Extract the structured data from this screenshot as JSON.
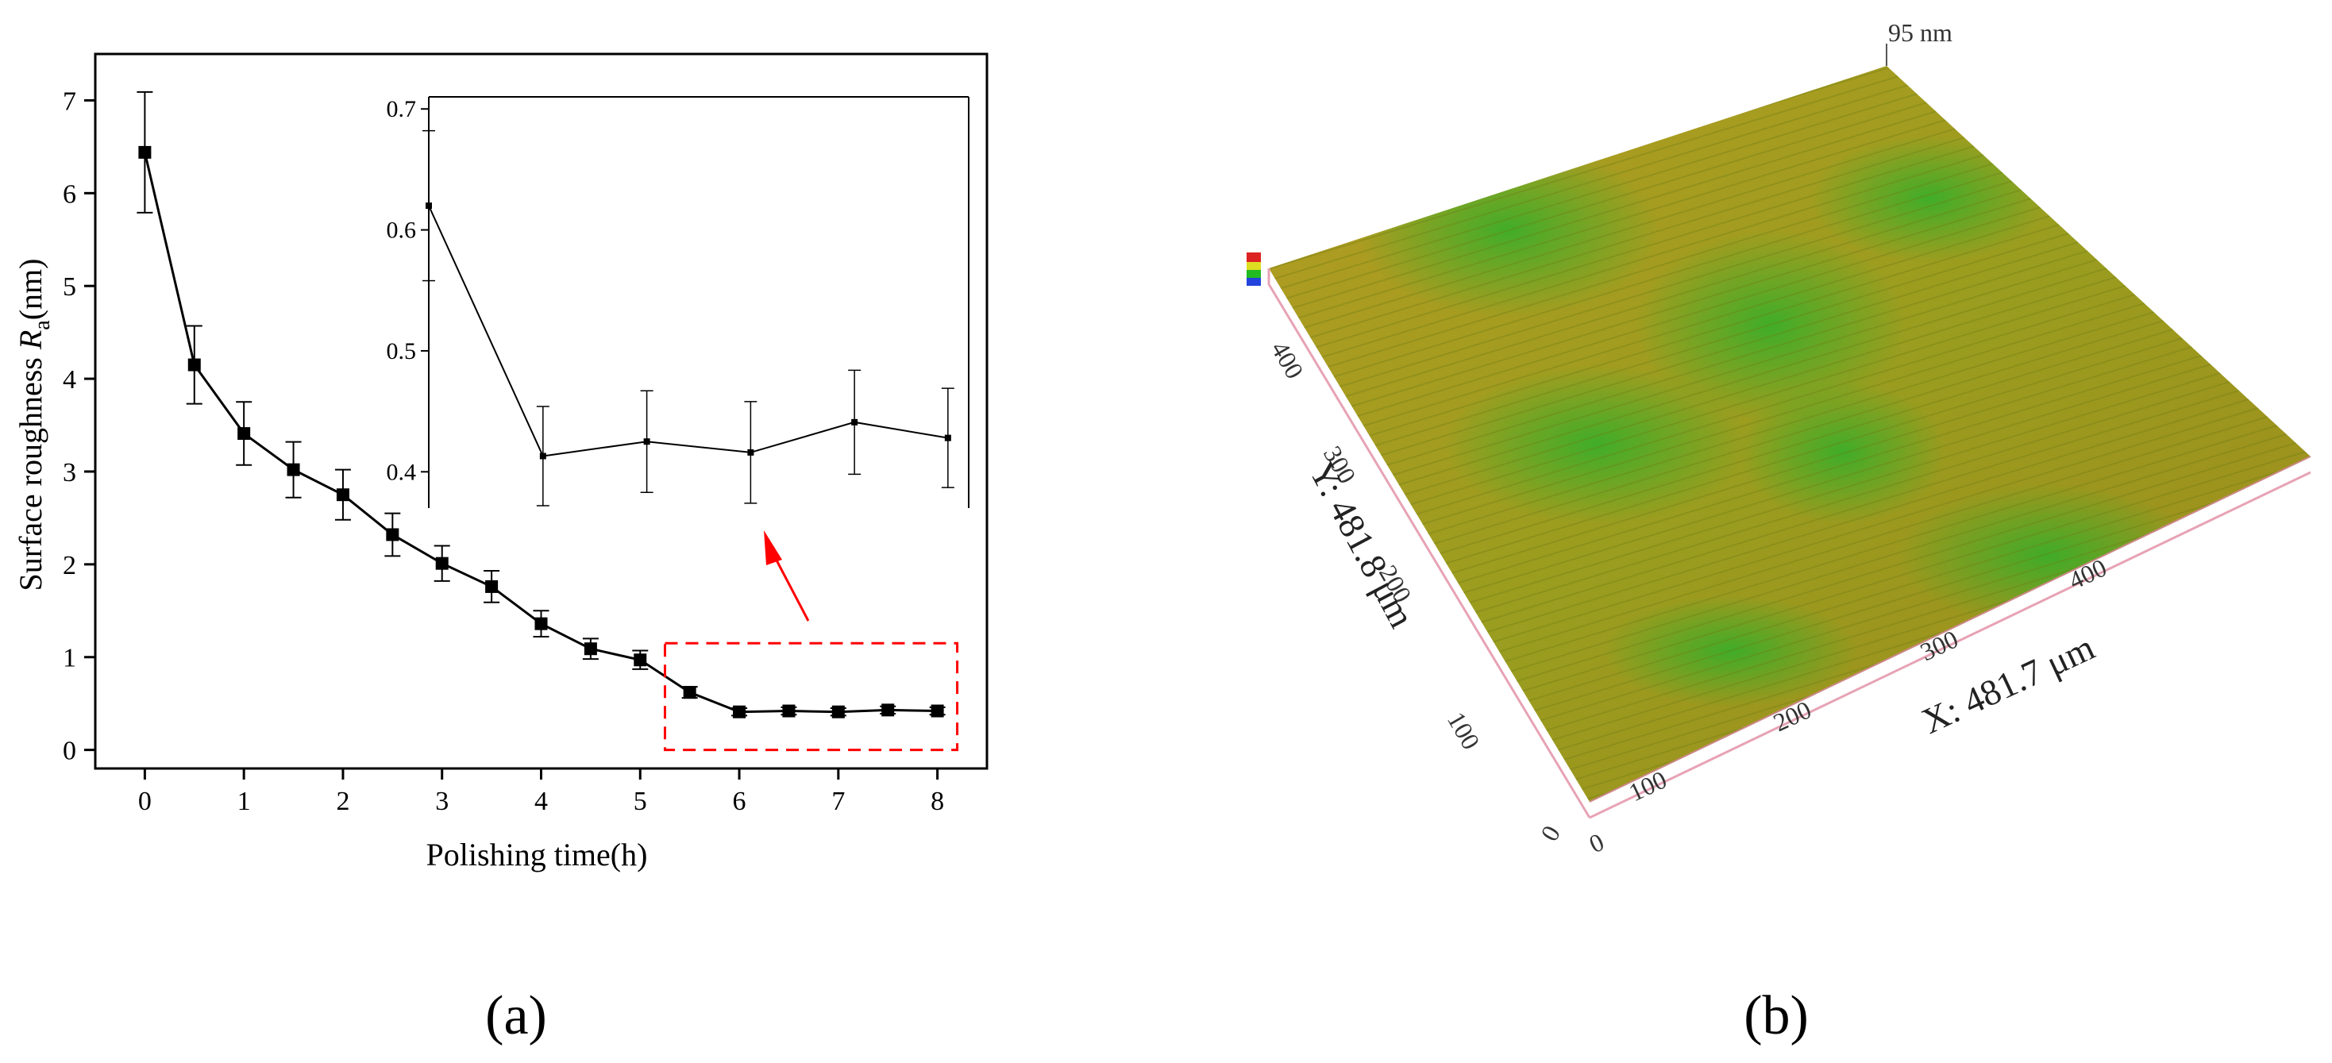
{
  "chart_data": [
    {
      "type": "line",
      "panel_label": "(a)",
      "xlabel": "Polishing time(h)",
      "ylabel_prefix": "Surface roughness ",
      "ylabel_symbol": "R",
      "ylabel_subscript": "a",
      "ylabel_suffix": "(nm)",
      "xlim": [
        -0.5,
        8.5
      ],
      "ylim": [
        -0.2,
        7.5
      ],
      "x_ticks": [
        "0",
        "1",
        "2",
        "3",
        "4",
        "5",
        "6",
        "7",
        "8"
      ],
      "y_ticks": [
        "0",
        "1",
        "2",
        "3",
        "4",
        "5",
        "6",
        "7"
      ],
      "marker": "square",
      "line_color": "#000000",
      "series": [
        {
          "x": [
            0,
            0.5,
            1,
            1.5,
            2,
            2.5,
            3,
            3.5,
            4,
            4.5,
            5,
            5.5,
            6,
            6.5,
            7,
            7.5,
            8
          ],
          "y": [
            6.44,
            4.15,
            3.41,
            3.02,
            2.75,
            2.32,
            2.01,
            1.76,
            1.36,
            1.09,
            0.97,
            0.62,
            0.41,
            0.42,
            0.41,
            0.43,
            0.42
          ],
          "err": [
            0.65,
            0.42,
            0.34,
            0.3,
            0.27,
            0.23,
            0.19,
            0.17,
            0.14,
            0.11,
            0.1,
            0.06,
            0.04,
            0.04,
            0.04,
            0.04,
            0.04
          ]
        }
      ],
      "highlight_box": {
        "x_range": [
          5.25,
          8.2
        ],
        "y_range": [
          0.0,
          1.15
        ],
        "color": "#ff0000",
        "style": "dashed"
      },
      "arrow_color": "#ff0000"
    },
    {
      "type": "line",
      "role": "inset",
      "xlim": [
        5.5,
        8.1
      ],
      "ylim": [
        0.37,
        0.71
      ],
      "y_ticks": [
        "0.4",
        "0.5",
        "0.6",
        "0.7"
      ],
      "series": [
        {
          "x": [
            5.5,
            6.05,
            6.55,
            7.05,
            7.55,
            8.0
          ],
          "y": [
            0.62,
            0.413,
            0.425,
            0.416,
            0.441,
            0.428
          ],
          "err": [
            0.062,
            0.041,
            0.042,
            0.042,
            0.043,
            0.041
          ]
        }
      ]
    }
  ],
  "afm_image": {
    "panel_label": "(b)",
    "z_label": "95 nm",
    "x_axis_title": "X: 481.7 μm",
    "y_axis_title": "Y: 481.8 μm",
    "x_ticks": [
      "0",
      "100",
      "200",
      "300",
      "400"
    ],
    "y_ticks": [
      "100",
      "200",
      "300",
      "400"
    ],
    "origin_label": "0",
    "surface_colors": [
      "#a89a1e",
      "#3fae2a"
    ]
  }
}
